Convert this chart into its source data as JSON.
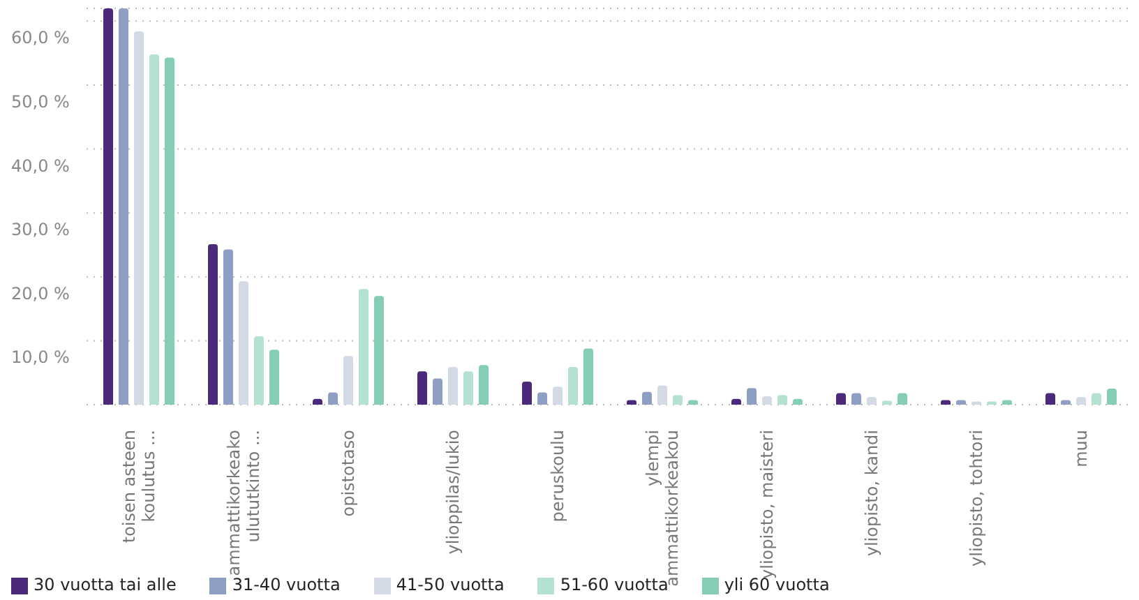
{
  "chart_data": {
    "type": "bar",
    "categories": [
      "toisen asteen\nkoulutus ...",
      "ammattikorkeako\nulututkinto ...",
      "opistotaso",
      "ylioppilas/lukio",
      "peruskoulu",
      "ylempi\nammattikorkeakou",
      "yliopisto, maisteri",
      "yliopisto, kandi",
      "yliopisto, tohtori",
      "muu"
    ],
    "series": [
      {
        "name": "30 vuotta tai alle",
        "color": "#4b2a7b",
        "values": [
          62,
          25.1,
          0.9,
          5.2,
          3.6,
          0.7,
          0.9,
          1.8,
          0.7,
          1.8
        ]
      },
      {
        "name": "31-40 vuotta",
        "color": "#8f9fc4",
        "values": [
          62,
          24.3,
          1.9,
          4.1,
          1.9,
          2.0,
          2.6,
          1.8,
          0.7,
          0.7
        ]
      },
      {
        "name": "41-50 vuotta",
        "color": "#d4d9e6",
        "values": [
          58.4,
          19.3,
          7.6,
          5.9,
          2.8,
          3.0,
          1.3,
          1.2,
          0.5,
          1.2
        ]
      },
      {
        "name": "51-60 vuotta",
        "color": "#b5e2d0",
        "values": [
          54.8,
          10.7,
          18.1,
          5.2,
          5.9,
          1.5,
          1.5,
          0.6,
          0.5,
          1.8
        ]
      },
      {
        "name": "yli 60 vuotta",
        "color": "#85cdb3",
        "values": [
          54.3,
          8.6,
          17.0,
          6.2,
          8.8,
          0.7,
          0.9,
          1.8,
          0.7,
          2.5
        ]
      }
    ],
    "ylim": [
      0,
      62
    ],
    "yticks": [
      {
        "value": 0,
        "label": null
      },
      {
        "value": 10,
        "label": "10,0 %"
      },
      {
        "value": 20,
        "label": "20,0 %"
      },
      {
        "value": 30,
        "label": "30,0 %"
      },
      {
        "value": 40,
        "label": "40,0 %"
      },
      {
        "value": 50,
        "label": "50,0 %"
      },
      {
        "value": 60,
        "label": "60,0 %"
      }
    ],
    "grid": "y",
    "legend": "bottom left"
  }
}
